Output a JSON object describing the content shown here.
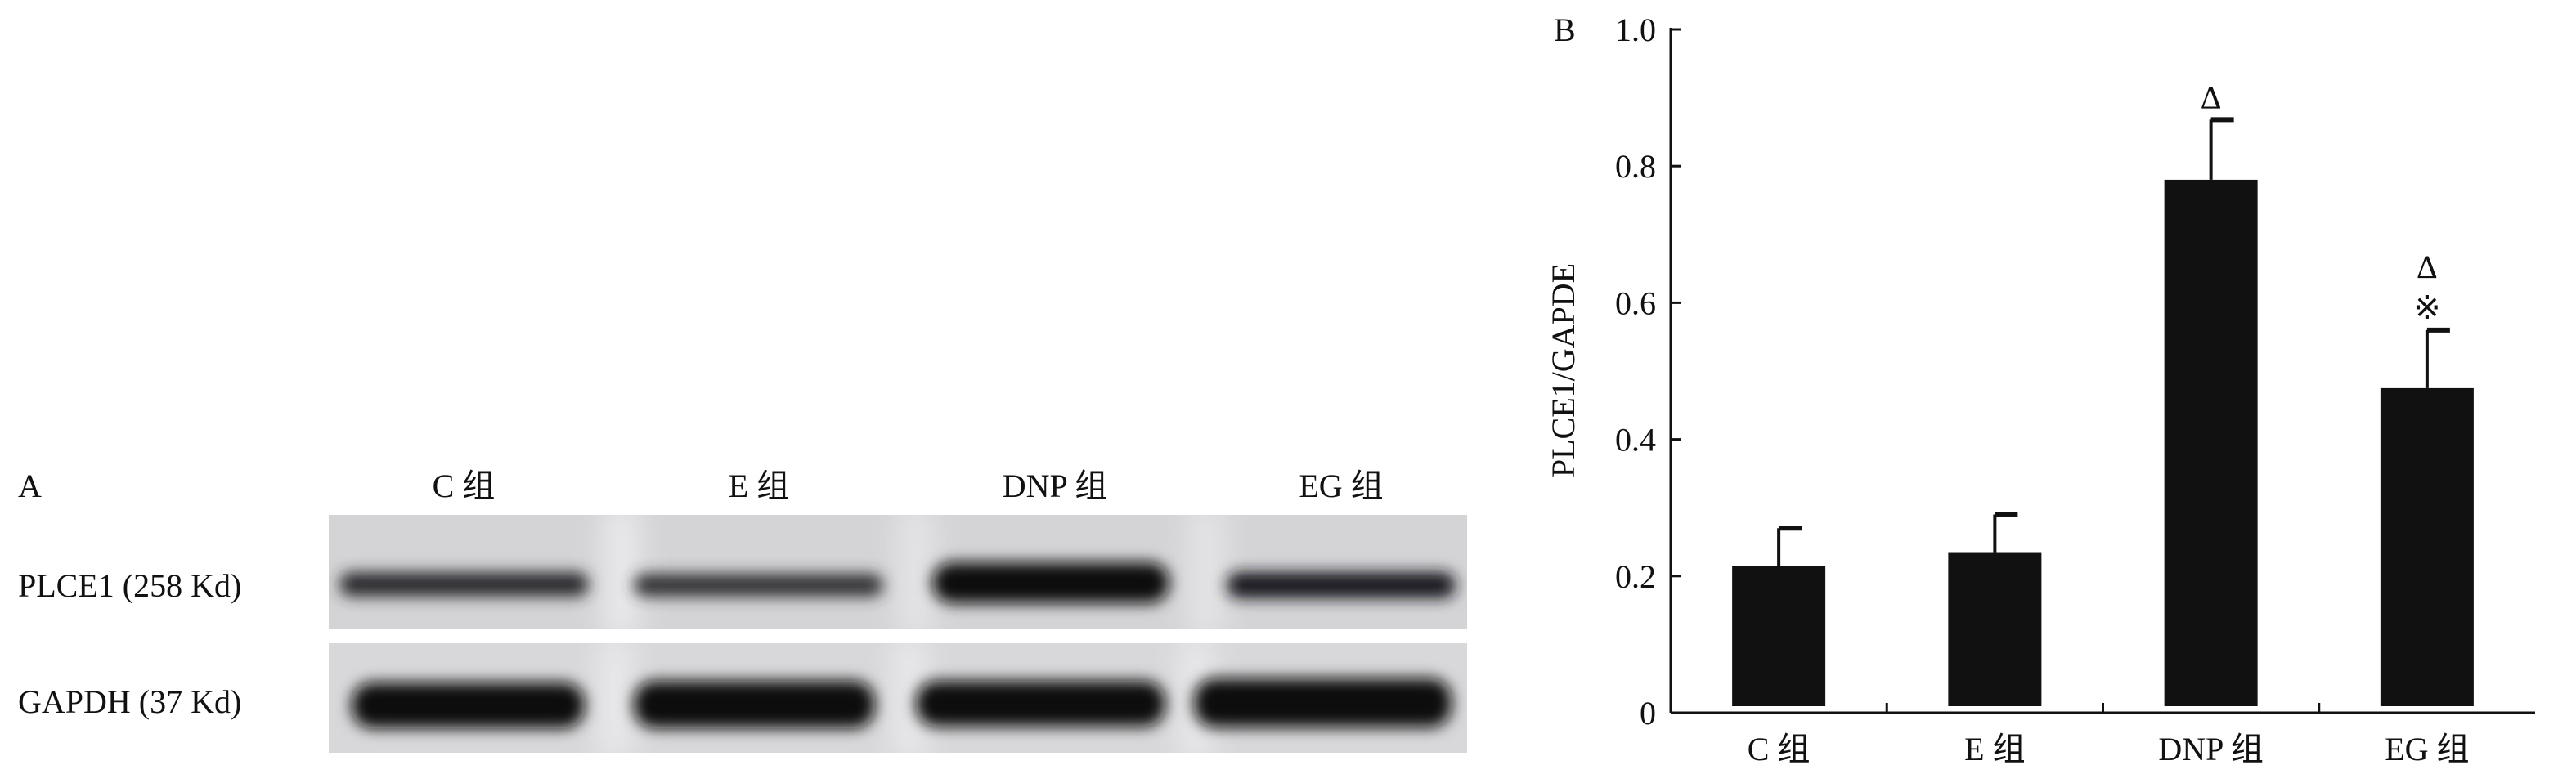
{
  "panel_a": {
    "label": "A",
    "lanes": [
      "C 组",
      "E 组",
      "DNP 组",
      "EG 组"
    ],
    "rows": [
      {
        "label": "PLCE1 (258 Kd)"
      },
      {
        "label": "GAPDH (37 Kd)"
      }
    ]
  },
  "chart_data": {
    "type": "bar",
    "panel_label": "B",
    "categories": [
      "C 组",
      "E 组",
      "DNP 组",
      "EG 组"
    ],
    "values": [
      0.215,
      0.235,
      0.78,
      0.475
    ],
    "error_upper": [
      0.27,
      0.29,
      0.868,
      0.56
    ],
    "annotations": [
      "",
      "",
      "Δ",
      "Δ\n※"
    ],
    "annotation_lines": [
      [],
      [],
      [
        "Δ"
      ],
      [
        "Δ",
        "※"
      ]
    ],
    "xlabel": "",
    "ylabel": "PLCE1/GAPDE",
    "ylim": [
      0,
      1.0
    ],
    "yticks": [
      0,
      0.2,
      0.4,
      0.6,
      0.8,
      1.0
    ],
    "ytick_labels": [
      "0",
      "0.2",
      "0.4",
      "0.6",
      "0.8",
      "1.0"
    ],
    "grid": false,
    "bar_color": "#111111"
  }
}
